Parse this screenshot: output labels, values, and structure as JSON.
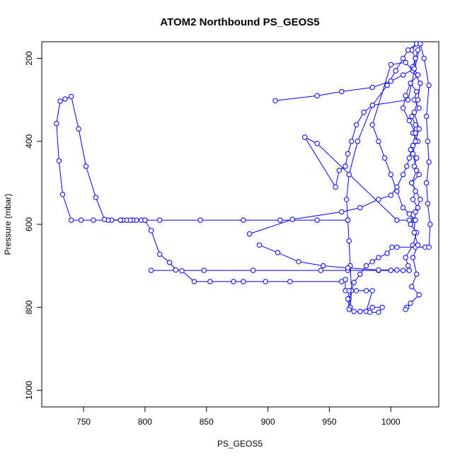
{
  "chart_data": {
    "type": "line",
    "title": "ATOM2 Northbound PS_GEOS5",
    "xlabel": "PS_GEOS5",
    "ylabel": "Pressure (mbar)",
    "xlim": [
      716,
      1039
    ],
    "ylim": [
      1040,
      160
    ],
    "y_reversed": true,
    "x_ticks": [
      750,
      800,
      850,
      900,
      950,
      1000
    ],
    "y_ticks": [
      200,
      400,
      600,
      800,
      1000
    ],
    "series_color": "#0000ff",
    "marker": "open-circle",
    "series": [
      {
        "points": [
          [
            805,
            711
          ],
          [
            848,
            711
          ],
          [
            888,
            711
          ],
          [
            943,
            711
          ],
          [
            965,
            711
          ],
          [
            990,
            711
          ],
          [
            1000,
            711
          ],
          [
            1010,
            711
          ],
          [
            1015,
            711
          ],
          [
            1014,
            700
          ],
          [
            1012,
            680
          ],
          [
            1018,
            650
          ],
          [
            1021,
            620
          ],
          [
            1016,
            600
          ],
          [
            1019,
            590
          ],
          [
            1015,
            575
          ],
          [
            1022,
            560
          ],
          [
            1018,
            540
          ],
          [
            1020,
            520
          ],
          [
            1017,
            500
          ],
          [
            1023,
            480
          ],
          [
            1019,
            460
          ],
          [
            1021,
            440
          ],
          [
            1016,
            420
          ],
          [
            1022,
            400
          ],
          [
            1018,
            380
          ],
          [
            1020,
            360
          ],
          [
            1017,
            340
          ],
          [
            1023,
            320
          ],
          [
            1019,
            300
          ],
          [
            1021,
            280
          ],
          [
            1016,
            260
          ],
          [
            1022,
            240
          ],
          [
            1018,
            220
          ],
          [
            1020,
            200
          ],
          [
            1017,
            180
          ],
          [
            1021,
            165
          ],
          [
            1014,
            180
          ],
          [
            1010,
            200
          ],
          [
            1004,
            230
          ],
          [
            997,
            265
          ],
          [
            985,
            313
          ],
          [
            973,
            400
          ],
          [
            966,
            480
          ],
          [
            964,
            540
          ],
          [
            965,
            590
          ],
          [
            966,
            640
          ],
          [
            967,
            700
          ],
          [
            968,
            760
          ],
          [
            967,
            800
          ],
          [
            966,
            780
          ],
          [
            970,
            740
          ],
          [
            975,
            720
          ],
          [
            980,
            700
          ],
          [
            985,
            690
          ],
          [
            990,
            680
          ],
          [
            997,
            670
          ],
          [
            1001,
            655
          ],
          [
            1005,
            655
          ],
          [
            1020,
            655
          ],
          [
            1028,
            655
          ],
          [
            1031,
            655
          ],
          [
            1032,
            600
          ],
          [
            1030,
            550
          ],
          [
            1029,
            500
          ],
          [
            1031,
            450
          ],
          [
            1030,
            400
          ],
          [
            1029,
            340
          ],
          [
            1031,
            265
          ],
          [
            1027,
            200
          ],
          [
            1024,
            165
          ],
          [
            1014,
            300
          ],
          [
            985,
            313
          ],
          [
            978,
            330
          ],
          [
            972,
            360
          ],
          [
            968,
            400
          ],
          [
            965,
            430
          ],
          [
            963,
            460
          ],
          [
            958,
            470
          ],
          [
            955,
            510
          ],
          [
            930,
            390
          ],
          [
            940,
            405
          ],
          [
            1005,
            590
          ],
          [
            1015,
            590
          ],
          [
            1020,
            590
          ],
          [
            1010,
            560
          ],
          [
            1005,
            520
          ],
          [
            1000,
            480
          ],
          [
            995,
            440
          ],
          [
            990,
            400
          ],
          [
            985,
            360
          ],
          [
            1000,
            215
          ],
          [
            1012,
            210
          ],
          [
            1018,
            230
          ],
          [
            1024,
            260
          ],
          [
            1022,
            300
          ],
          [
            1019,
            330
          ],
          [
            1023,
            370
          ],
          [
            1020,
            400
          ],
          [
            1018,
            430
          ],
          [
            1021,
            470
          ],
          [
            1017,
            500
          ],
          [
            1024,
            540
          ],
          [
            1020,
            570
          ],
          [
            1019,
            620
          ],
          [
            1022,
            650
          ],
          [
            1018,
            680
          ],
          [
            1021,
            720
          ],
          [
            1017,
            750
          ],
          [
            1023,
            770
          ],
          [
            1016,
            790
          ],
          [
            1013,
            800
          ],
          [
            1012,
            805
          ]
        ]
      },
      {
        "points": [
          [
            965,
            590
          ],
          [
            940,
            590
          ],
          [
            910,
            590
          ],
          [
            880,
            590
          ],
          [
            845,
            590
          ],
          [
            812,
            590
          ],
          [
            800,
            590
          ],
          [
            797,
            590
          ],
          [
            793,
            590
          ],
          [
            790,
            590
          ],
          [
            788,
            590
          ],
          [
            785,
            590
          ],
          [
            782,
            590
          ],
          [
            780,
            590
          ],
          [
            773,
            590
          ],
          [
            770,
            590
          ],
          [
            758,
            590
          ],
          [
            748,
            590
          ],
          [
            740,
            590
          ],
          [
            733,
            528
          ],
          [
            730,
            447
          ],
          [
            728,
            357
          ],
          [
            731,
            303
          ],
          [
            735,
            298
          ],
          [
            740,
            292
          ],
          [
            746,
            370
          ],
          [
            752,
            460
          ],
          [
            760,
            535
          ],
          [
            767,
            588
          ],
          [
            780,
            590
          ],
          [
            800,
            590
          ],
          [
            805,
            615
          ],
          [
            812,
            672
          ],
          [
            820,
            692
          ],
          [
            825,
            710
          ],
          [
            830,
            712
          ],
          [
            840,
            738
          ],
          [
            853,
            738
          ],
          [
            872,
            738
          ],
          [
            880,
            738
          ],
          [
            898,
            738
          ],
          [
            918,
            738
          ],
          [
            960,
            738
          ],
          [
            963,
            733
          ],
          [
            963,
            760
          ],
          [
            972,
            760
          ],
          [
            980,
            760
          ],
          [
            985,
            760
          ],
          [
            980,
            810
          ],
          [
            983,
            812
          ],
          [
            990,
            812
          ],
          [
            993,
            800
          ],
          [
            985,
            800
          ],
          [
            975,
            810
          ],
          [
            970,
            810
          ],
          [
            966,
            805
          ],
          [
            965,
            780
          ],
          [
            966,
            760
          ]
        ]
      },
      {
        "points": [
          [
            885,
            623
          ],
          [
            920,
            588
          ],
          [
            960,
            570
          ],
          [
            975,
            560
          ],
          [
            990,
            540
          ],
          [
            1000,
            530
          ],
          [
            1005,
            510
          ],
          [
            1010,
            480
          ],
          [
            1013,
            460
          ],
          [
            1015,
            440
          ],
          [
            1018,
            410
          ],
          [
            1020,
            380
          ],
          [
            1015,
            350
          ],
          [
            1010,
            320
          ],
          [
            1012,
            290
          ],
          [
            1016,
            260
          ]
        ]
      },
      {
        "points": [
          [
            906,
            302
          ],
          [
            940,
            290
          ],
          [
            960,
            280
          ],
          [
            985,
            270
          ],
          [
            1000,
            255
          ],
          [
            1010,
            240
          ],
          [
            1019,
            225
          ],
          [
            1020,
            200
          ],
          [
            1022,
            180
          ]
        ]
      },
      {
        "points": [
          [
            893,
            650
          ],
          [
            908,
            668
          ],
          [
            925,
            690
          ],
          [
            945,
            700
          ],
          [
            965,
            705
          ],
          [
            990,
            710
          ],
          [
            1005,
            710
          ]
        ]
      }
    ]
  }
}
